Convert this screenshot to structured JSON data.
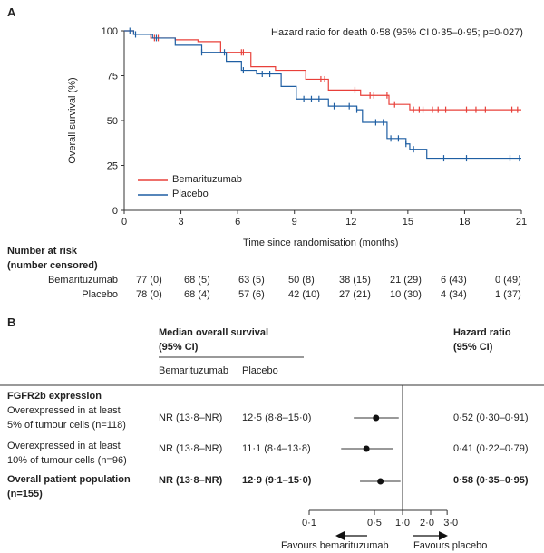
{
  "panel_a": {
    "label": "A",
    "hr_text": "Hazard ratio for death 0·58 (95% CI 0·35–0·95; p=0·027)",
    "risk_title_1": "Number at risk",
    "risk_title_2": "(number censored)",
    "risk_rows": [
      {
        "name": "Bemarituzumab",
        "values": [
          "77 (0)",
          "68 (5)",
          "63 (5)",
          "50 (8)",
          "38 (15)",
          "21 (29)",
          "6 (43)",
          "0 (49)"
        ]
      },
      {
        "name": "Placebo",
        "values": [
          "78 (0)",
          "68 (4)",
          "57 (6)",
          "42 (10)",
          "27 (21)",
          "10 (30)",
          "4 (34)",
          "1 (37)"
        ]
      }
    ]
  },
  "chart_data": [
    {
      "type": "line",
      "subtype": "kaplan-meier step",
      "xlabel": "Time since randomisation (months)",
      "ylabel": "Overall survival (%)",
      "xlim": [
        0,
        21
      ],
      "ylim": [
        0,
        100
      ],
      "xticks": [
        0,
        3,
        6,
        9,
        12,
        15,
        18,
        21
      ],
      "yticks": [
        0,
        25,
        50,
        75,
        100
      ],
      "legend": "bottom-left",
      "series": [
        {
          "name": "Bemarituzumab",
          "color": "#e8403a",
          "x": [
            0,
            0.5,
            1.4,
            2.7,
            3.9,
            5.1,
            6.7,
            8.0,
            9.6,
            10.8,
            12.5,
            14.0,
            15.1,
            21
          ],
          "y": [
            100,
            98,
            96,
            95,
            94,
            88,
            80,
            78,
            73,
            67,
            64,
            59,
            56,
            56
          ],
          "censored_x": [
            1.6,
            1.8,
            6.2,
            6.3,
            10.4,
            10.6,
            12.2,
            13.0,
            13.2,
            13.9,
            14.3,
            15.3,
            15.6,
            15.8,
            16.3,
            16.6,
            17.0,
            18.1,
            18.6,
            19.1,
            20.5,
            20.8
          ]
        },
        {
          "name": "Placebo",
          "color": "#1f5fa3",
          "x": [
            0,
            0.5,
            1.5,
            2.7,
            4.1,
            5.4,
            6.2,
            7.0,
            8.3,
            9.1,
            10.8,
            12.3,
            12.6,
            13.9,
            14.9,
            15.1,
            16.0,
            21
          ],
          "y": [
            100,
            98,
            96,
            92,
            88,
            83,
            78,
            76,
            69,
            62,
            58,
            56,
            49,
            40,
            37,
            34,
            29,
            29
          ],
          "censored_x": [
            0.3,
            0.6,
            1.7,
            4.1,
            5.3,
            6.3,
            7.3,
            7.7,
            9.5,
            9.9,
            10.3,
            11.1,
            11.9,
            12.3,
            13.3,
            13.7,
            14.1,
            14.5,
            14.9,
            15.3,
            16.9,
            18.1,
            20.4,
            20.9
          ]
        }
      ]
    },
    {
      "type": "forest",
      "xscale": "log",
      "xticks": [
        "0·1",
        "0·5",
        "1·0",
        "2·0",
        "3·0"
      ],
      "xtick_values": [
        0.1,
        0.5,
        1.0,
        2.0,
        3.0
      ],
      "left_arrow_label": "Favours bemarituzumab",
      "right_arrow_label": "Favours placebo",
      "points": [
        {
          "hr": 0.52,
          "lo": 0.3,
          "hi": 0.91
        },
        {
          "hr": 0.41,
          "lo": 0.22,
          "hi": 0.79
        },
        {
          "hr": 0.58,
          "lo": 0.35,
          "hi": 0.95
        }
      ]
    }
  ],
  "panel_b": {
    "label": "B",
    "median_header_1": "Median overall survival",
    "median_header_2": "(95% CI)",
    "col_bema": "Bemarituzumab",
    "col_placebo": "Placebo",
    "hr_header_1": "Hazard ratio",
    "hr_header_2": "(95% CI)",
    "group": "FGFR2b expression",
    "rows": [
      {
        "label_1": "Overexpressed in at least",
        "label_2": "5% of tumour cells (n=118)",
        "bema": "NR (13·8–NR)",
        "placebo": "12·5 (8·8–15·0)",
        "hr": "0·52 (0·30–0·91)"
      },
      {
        "label_1": "Overexpressed in at least",
        "label_2": "10% of tumour cells (n=96)",
        "bema": "NR (13·8–NR)",
        "placebo": "11·1 (8·4–13·8)",
        "hr": "0·41 (0·22–0·79)"
      },
      {
        "label_1": "Overall patient population",
        "label_2": "(n=155)",
        "bema": "NR (13·8–NR)",
        "placebo": "12·9 (9·1–15·0)",
        "hr": "0·58 (0·35–0·95)"
      }
    ]
  }
}
